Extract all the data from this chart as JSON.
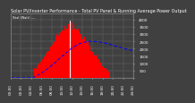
{
  "title": "Solar PV/Inverter Performance - Total PV Panel & Running Average Power Output",
  "subtitle": "Total (Watt) ----",
  "bg_color": "#404040",
  "plot_bg_color": "#404040",
  "grid_color": "#ffffff",
  "bar_color": "#ff0000",
  "avg_line_color": "#0000ff",
  "peak_line_color": "#ffffff",
  "num_bars": 96,
  "peak_index": 46,
  "x_labels": [
    "00:00",
    "02:00",
    "04:00",
    "06:00",
    "08:00",
    "10:00",
    "12:00",
    "14:00",
    "16:00",
    "18:00",
    "20:00",
    "22:00",
    "24:00"
  ],
  "y_ticks_right": [
    "4000",
    "3500",
    "3000",
    "2500",
    "2000",
    "1500",
    "1000",
    "500",
    ""
  ],
  "ylim": [
    0,
    4400
  ],
  "xlim": [
    0,
    96
  ],
  "title_color": "#ffffff",
  "tick_color": "#ffffff",
  "title_fontsize": 3.5,
  "tick_fontsize": 3.0
}
